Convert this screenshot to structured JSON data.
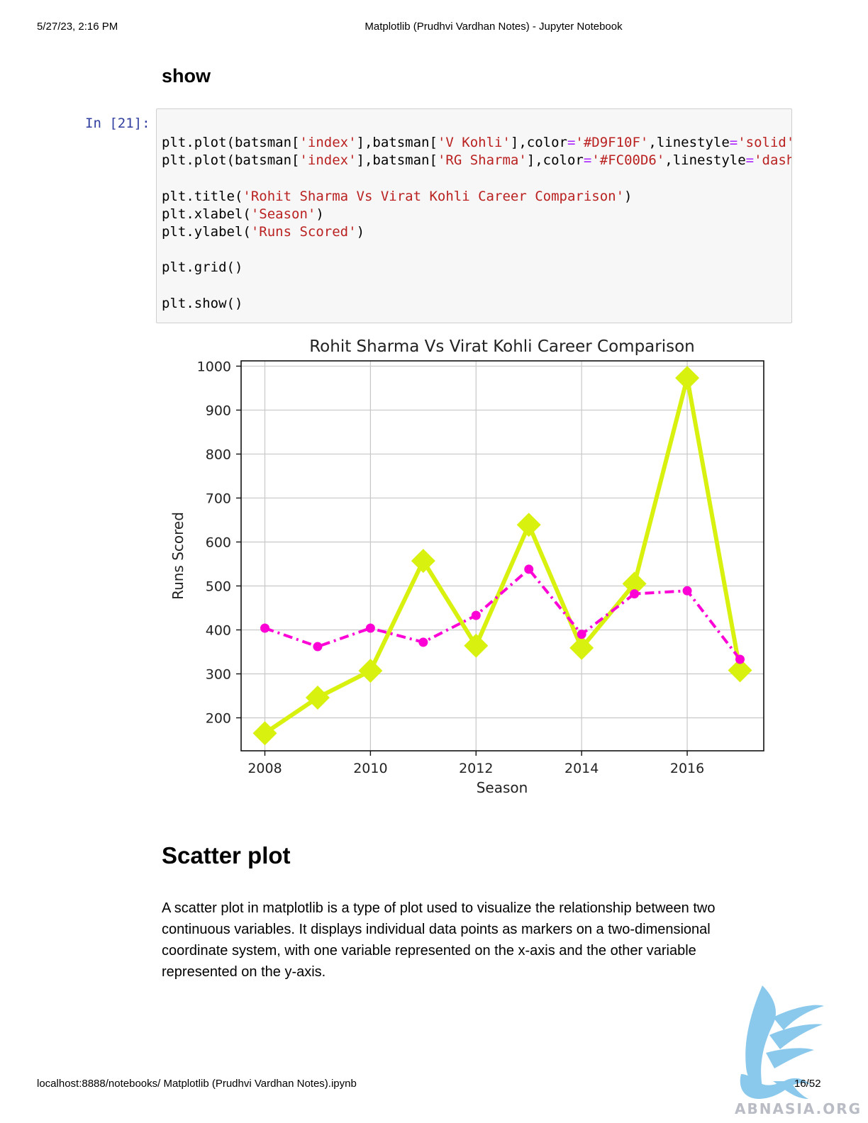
{
  "print_header": {
    "datetime": "5/27/23, 2:16 PM",
    "title": "Matplotlib (Prudhvi Vardhan Notes) - Jupyter Notebook"
  },
  "section_show": {
    "heading": "show"
  },
  "cell": {
    "prompt": "In [21]:",
    "lines": [
      [
        {
          "t": "plt.plot(batsman["
        },
        {
          "t": "'index'",
          "c": "s"
        },
        {
          "t": "],batsman["
        },
        {
          "t": "'V Kohli'",
          "c": "s"
        },
        {
          "t": "],color"
        },
        {
          "t": "=",
          "c": "o"
        },
        {
          "t": "'#D9F10F'",
          "c": "s"
        },
        {
          "t": ",linestyle"
        },
        {
          "t": "=",
          "c": "o"
        },
        {
          "t": "'solid'",
          "c": "s"
        }
      ],
      [
        {
          "t": "plt.plot(batsman["
        },
        {
          "t": "'index'",
          "c": "s"
        },
        {
          "t": "],batsman["
        },
        {
          "t": "'RG Sharma'",
          "c": "s"
        },
        {
          "t": "],color"
        },
        {
          "t": "=",
          "c": "o"
        },
        {
          "t": "'#FC00D6'",
          "c": "s"
        },
        {
          "t": ",linestyle"
        },
        {
          "t": "=",
          "c": "o"
        },
        {
          "t": "'dash",
          "c": "s"
        }
      ],
      [],
      [
        {
          "t": "plt.title("
        },
        {
          "t": "'Rohit Sharma Vs Virat Kohli Career Comparison'",
          "c": "s"
        },
        {
          "t": ")"
        }
      ],
      [
        {
          "t": "plt.xlabel("
        },
        {
          "t": "'Season'",
          "c": "s"
        },
        {
          "t": ")"
        }
      ],
      [
        {
          "t": "plt.ylabel("
        },
        {
          "t": "'Runs Scored'",
          "c": "s"
        },
        {
          "t": ")"
        }
      ],
      [],
      [
        {
          "t": "plt.grid()"
        }
      ],
      [],
      [
        {
          "t": "plt.show()"
        }
      ]
    ]
  },
  "chart_data": {
    "type": "line",
    "title": "Rohit Sharma Vs Virat Kohli Career Comparison",
    "xlabel": "Season",
    "ylabel": "Runs Scored",
    "x": [
      2008,
      2009,
      2010,
      2011,
      2012,
      2013,
      2014,
      2015,
      2016,
      2017
    ],
    "xticks": [
      2008,
      2010,
      2012,
      2014,
      2016
    ],
    "yticks": [
      200,
      300,
      400,
      500,
      600,
      700,
      800,
      900,
      1000
    ],
    "xlim": [
      2007.55,
      2017.45
    ],
    "ylim": [
      125,
      1012
    ],
    "grid": true,
    "series": [
      {
        "key": "kohli",
        "color": "#D9F10F",
        "linestyle": "solid",
        "marker": "diamond",
        "values": [
          165,
          246,
          307,
          557,
          364,
          639,
          359,
          505,
          973,
          308
        ]
      },
      {
        "key": "sharma",
        "color": "#FC00D6",
        "linestyle": "dashdot",
        "marker": "circle",
        "values": [
          404,
          362,
          404,
          372,
          433,
          538,
          390,
          482,
          489,
          333
        ]
      }
    ]
  },
  "section_scatter": {
    "heading": "Scatter plot",
    "paragraph": "A scatter plot in matplotlib is a type of plot used to visualize the relationship between two continuous variables. It displays individual data points as markers on a two-dimensional coordinate system, with one variable represented on the x-axis and the other variable represented on the y-axis."
  },
  "print_footer": {
    "url": "localhost:8888/notebooks/ Matplotlib (Prudhvi Vardhan Notes).ipynb",
    "page": "16/52"
  },
  "watermark": {
    "text": "ABNASIA.ORG",
    "icon": "griffin-logo",
    "color": "#7ec3ea"
  }
}
